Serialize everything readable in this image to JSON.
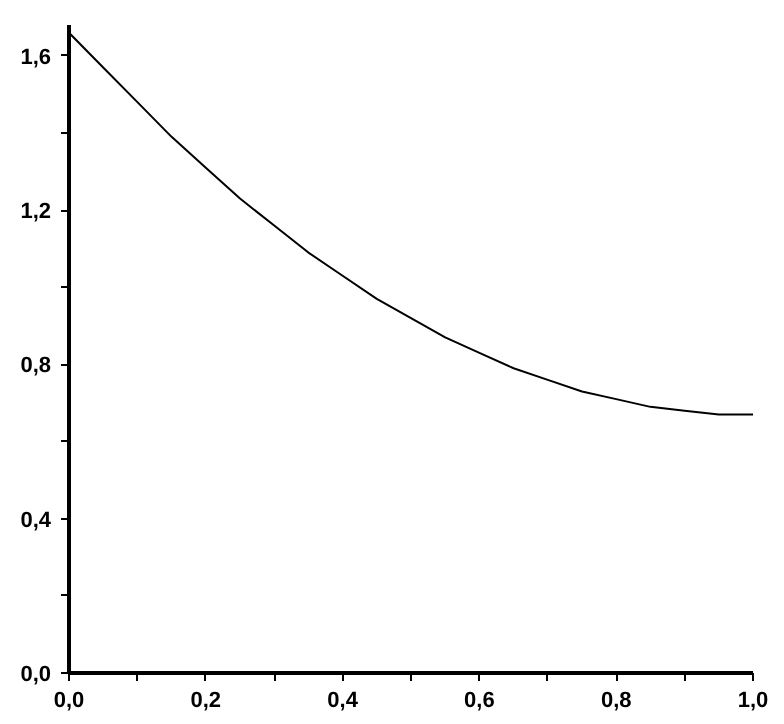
{
  "chart_data": {
    "type": "line",
    "x": [
      0,
      0.05,
      0.1,
      0.15,
      0.2,
      0.25,
      0.3,
      0.35,
      0.4,
      0.45,
      0.5,
      0.55,
      0.6,
      0.65,
      0.7,
      0.75,
      0.8,
      0.85,
      0.9,
      0.95,
      1.0
    ],
    "series": [
      {
        "color": "#000000",
        "values": [
          1.66,
          1.57,
          1.48,
          1.39,
          1.31,
          1.23,
          1.16,
          1.09,
          1.03,
          0.97,
          0.92,
          0.87,
          0.83,
          0.79,
          0.76,
          0.73,
          0.71,
          0.69,
          0.68,
          0.67,
          0.67
        ]
      }
    ],
    "xlim": [
      0,
      1.0
    ],
    "ylim": [
      0,
      1.68
    ],
    "xticks": [
      {
        "value": 0,
        "label": "0,0"
      },
      {
        "value": 0.1,
        "label": null
      },
      {
        "value": 0.2,
        "label": "0,2"
      },
      {
        "value": 0.3,
        "label": null
      },
      {
        "value": 0.4,
        "label": "0,4"
      },
      {
        "value": 0.5,
        "label": null
      },
      {
        "value": 0.6,
        "label": "0,6"
      },
      {
        "value": 0.7,
        "label": null
      },
      {
        "value": 0.8,
        "label": "0,8"
      },
      {
        "value": 0.9,
        "label": null
      },
      {
        "value": 1.0,
        "label": "1,0"
      }
    ],
    "yticks": [
      {
        "value": 0,
        "label": "0,0"
      },
      {
        "value": 0.2,
        "label": null
      },
      {
        "value": 0.4,
        "label": "0,4"
      },
      {
        "value": 0.6,
        "label": null
      },
      {
        "value": 0.8,
        "label": "0,8"
      },
      {
        "value": 1.0,
        "label": null
      },
      {
        "value": 1.2,
        "label": "1,2"
      },
      {
        "value": 1.4,
        "label": null
      },
      {
        "value": 1.6,
        "label": "1,6"
      }
    ],
    "grid": false,
    "marker": "none",
    "line_style": "solid"
  }
}
